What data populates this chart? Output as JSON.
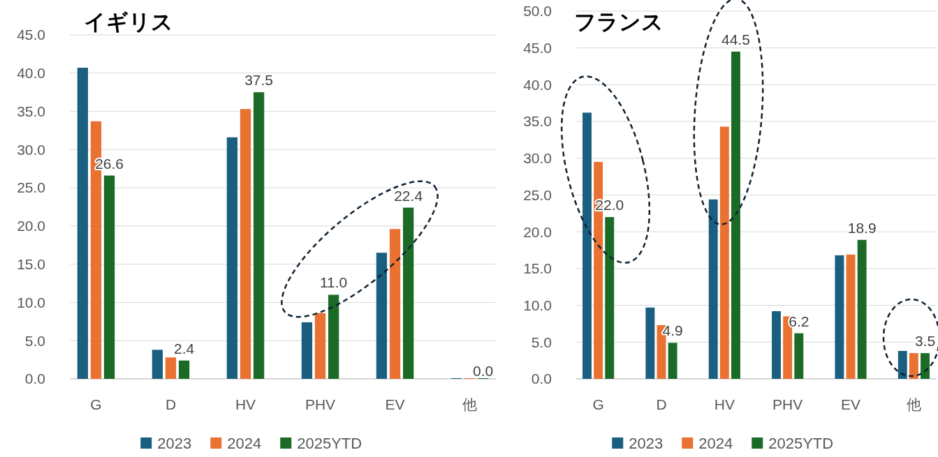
{
  "chart_data": [
    {
      "type": "bar",
      "title": "イギリス",
      "categories": [
        "G",
        "D",
        "HV",
        "PHV",
        "EV",
        "他"
      ],
      "series": [
        {
          "name": "2023",
          "color": "#1a5e80",
          "values": [
            40.7,
            3.8,
            31.6,
            7.4,
            16.5,
            0
          ]
        },
        {
          "name": "2024",
          "color": "#e97132",
          "values": [
            33.7,
            2.8,
            35.3,
            8.6,
            19.6,
            0
          ]
        },
        {
          "name": "2025YTD",
          "color": "#1b6b26",
          "values": [
            26.6,
            2.4,
            37.5,
            11.0,
            22.4,
            0.0
          ],
          "value_labels": [
            "26.6",
            "2.4",
            "37.5",
            "11.0",
            "22.4",
            "0.0"
          ]
        }
      ],
      "ylim": [
        0,
        45
      ],
      "yticks": [
        {
          "value": 0,
          "label": "0.0"
        },
        {
          "value": 5,
          "label": "5.0"
        },
        {
          "value": 10,
          "label": "10.0"
        },
        {
          "value": 15,
          "label": "15.0"
        },
        {
          "value": 20,
          "label": "20.0"
        },
        {
          "value": 25,
          "label": "25.0"
        },
        {
          "value": 30,
          "label": "30.0"
        },
        {
          "value": 35,
          "label": "35.0"
        },
        {
          "value": 40,
          "label": "40.0"
        },
        {
          "value": 45,
          "label": "45.0"
        }
      ],
      "grid": "y",
      "legend": "bottom"
    },
    {
      "type": "bar",
      "title": "フランス",
      "categories": [
        "G",
        "D",
        "HV",
        "PHV",
        "EV",
        "他"
      ],
      "series": [
        {
          "name": "2023",
          "color": "#1a5e80",
          "values": [
            36.2,
            9.7,
            24.4,
            9.2,
            16.8,
            3.8
          ]
        },
        {
          "name": "2024",
          "color": "#e97132",
          "values": [
            29.5,
            7.3,
            34.3,
            8.5,
            16.9,
            3.5
          ]
        },
        {
          "name": "2025YTD",
          "color": "#1b6b26",
          "values": [
            22.0,
            4.9,
            44.5,
            6.2,
            18.9,
            3.5
          ],
          "value_labels": [
            "22.0",
            "4.9",
            "44.5",
            "6.2",
            "18.9",
            "3.5"
          ]
        }
      ],
      "ylim": [
        0,
        50
      ],
      "yticks": [
        {
          "value": 0,
          "label": "0.0"
        },
        {
          "value": 5,
          "label": "5.0"
        },
        {
          "value": 10,
          "label": "10.0"
        },
        {
          "value": 15,
          "label": "15.0"
        },
        {
          "value": 20,
          "label": "20.0"
        },
        {
          "value": 25,
          "label": "25.0"
        },
        {
          "value": 30,
          "label": "30.0"
        },
        {
          "value": 35,
          "label": "35.0"
        },
        {
          "value": 40,
          "label": "40.0"
        },
        {
          "value": 45,
          "label": "45.0"
        },
        {
          "value": 50,
          "label": "50.0"
        }
      ],
      "grid": "y",
      "legend": "bottom"
    }
  ]
}
